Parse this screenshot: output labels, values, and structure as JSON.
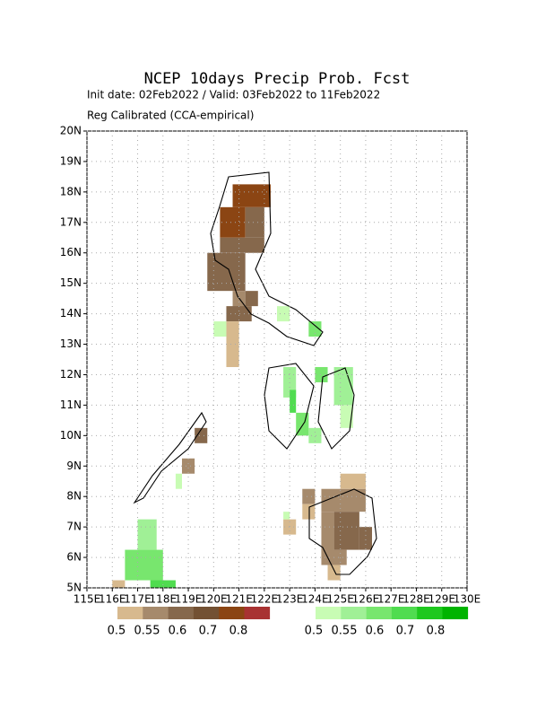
{
  "title": "NCEP 10days Precip Prob. Fcst",
  "subtitle": "Init date: 02Feb2022 / Valid: 03Feb2022 to 11Feb2022",
  "method": "Reg Calibrated (CCA-empirical)",
  "map": {
    "xlim": [
      115,
      130
    ],
    "ylim": [
      5,
      20
    ],
    "xticks": [
      {
        "value": 115,
        "label": "115E"
      },
      {
        "value": 116,
        "label": "116E"
      },
      {
        "value": 117,
        "label": "117E"
      },
      {
        "value": 118,
        "label": "118E"
      },
      {
        "value": 119,
        "label": "119E"
      },
      {
        "value": 120,
        "label": "120E"
      },
      {
        "value": 121,
        "label": "121E"
      },
      {
        "value": 122,
        "label": "122E"
      },
      {
        "value": 123,
        "label": "123E"
      },
      {
        "value": 124,
        "label": "124E"
      },
      {
        "value": 125,
        "label": "125E"
      },
      {
        "value": 126,
        "label": "126E"
      },
      {
        "value": 127,
        "label": "127E"
      },
      {
        "value": 128,
        "label": "128E"
      },
      {
        "value": 129,
        "label": "129E"
      },
      {
        "value": 130,
        "label": "130E"
      }
    ],
    "yticks": [
      {
        "value": 5,
        "label": "5N"
      },
      {
        "value": 6,
        "label": "6N"
      },
      {
        "value": 7,
        "label": "7N"
      },
      {
        "value": 8,
        "label": "8N"
      },
      {
        "value": 9,
        "label": "9N"
      },
      {
        "value": 10,
        "label": "10N"
      },
      {
        "value": 11,
        "label": "11N"
      },
      {
        "value": 12,
        "label": "12N"
      },
      {
        "value": 13,
        "label": "13N"
      },
      {
        "value": 14,
        "label": "14N"
      },
      {
        "value": 15,
        "label": "15N"
      },
      {
        "value": 16,
        "label": "16N"
      },
      {
        "value": 17,
        "label": "17N"
      },
      {
        "value": 18,
        "label": "18N"
      },
      {
        "value": 19,
        "label": "19N"
      },
      {
        "value": 20,
        "label": "20N"
      }
    ],
    "grid": true,
    "cells": [
      [
        120.75,
        122.25,
        17.5,
        18.25,
        4
      ],
      [
        120.25,
        121.25,
        16.5,
        17.5,
        4
      ],
      [
        121.25,
        122.0,
        16.5,
        17.5,
        2
      ],
      [
        120.25,
        122.0,
        16.0,
        16.5,
        2
      ],
      [
        119.75,
        121.25,
        14.75,
        16.0,
        2
      ],
      [
        120.75,
        121.25,
        14.0,
        14.75,
        1
      ],
      [
        121.25,
        121.75,
        14.25,
        14.75,
        2
      ],
      [
        120.5,
        121.5,
        13.75,
        14.25,
        2
      ],
      [
        120.5,
        121.0,
        12.25,
        13.75,
        0
      ],
      [
        120.0,
        120.5,
        13.25,
        13.75,
        6
      ],
      [
        119.25,
        119.75,
        9.75,
        10.25,
        2
      ],
      [
        118.75,
        119.25,
        8.75,
        9.25,
        1
      ],
      [
        118.5,
        118.75,
        8.25,
        8.75,
        6
      ],
      [
        117.0,
        117.75,
        6.25,
        7.25,
        7
      ],
      [
        116.5,
        118.0,
        5.25,
        6.25,
        8
      ],
      [
        117.5,
        118.5,
        5.0,
        5.25,
        9
      ],
      [
        116.0,
        116.5,
        5.0,
        5.25,
        0
      ],
      [
        122.75,
        123.25,
        11.25,
        12.25,
        7
      ],
      [
        123.0,
        123.25,
        10.75,
        11.5,
        9
      ],
      [
        123.25,
        123.75,
        10.0,
        10.75,
        8
      ],
      [
        123.75,
        124.25,
        9.75,
        10.25,
        7
      ],
      [
        124.0,
        124.5,
        11.75,
        12.25,
        8
      ],
      [
        124.75,
        125.5,
        11.0,
        12.25,
        7
      ],
      [
        125.0,
        125.5,
        10.25,
        11.0,
        6
      ],
      [
        123.75,
        124.25,
        13.25,
        13.75,
        8
      ],
      [
        122.5,
        123.0,
        13.75,
        14.25,
        6
      ],
      [
        123.5,
        124.0,
        7.75,
        8.25,
        1
      ],
      [
        123.5,
        124.0,
        7.25,
        7.75,
        0
      ],
      [
        124.25,
        126.0,
        7.5,
        8.25,
        1
      ],
      [
        125.0,
        126.0,
        8.25,
        8.75,
        0
      ],
      [
        124.75,
        125.75,
        6.25,
        7.5,
        2
      ],
      [
        124.25,
        124.75,
        6.0,
        7.5,
        1
      ],
      [
        125.75,
        126.25,
        6.25,
        7.0,
        2
      ],
      [
        124.25,
        125.25,
        5.75,
        6.25,
        1
      ],
      [
        124.5,
        125.0,
        5.25,
        5.75,
        0
      ],
      [
        122.75,
        123.25,
        6.75,
        7.25,
        0
      ],
      [
        122.75,
        123.0,
        7.25,
        7.5,
        6
      ]
    ]
  },
  "legend": {
    "dry": {
      "colors": [
        "#d7b98e",
        "#a68a6c",
        "#86684c",
        "#735133",
        "#8b4513",
        "#a83232"
      ],
      "labels": [
        "0.5",
        "0.55",
        "0.6",
        "0.7",
        "0.8"
      ]
    },
    "wet": {
      "colors": [
        "#c8fcb4",
        "#a0f096",
        "#78e66e",
        "#50dc50",
        "#1ec81e",
        "#00b400"
      ],
      "labels": [
        "0.5",
        "0.55",
        "0.6",
        "0.7",
        "0.8"
      ]
    }
  }
}
